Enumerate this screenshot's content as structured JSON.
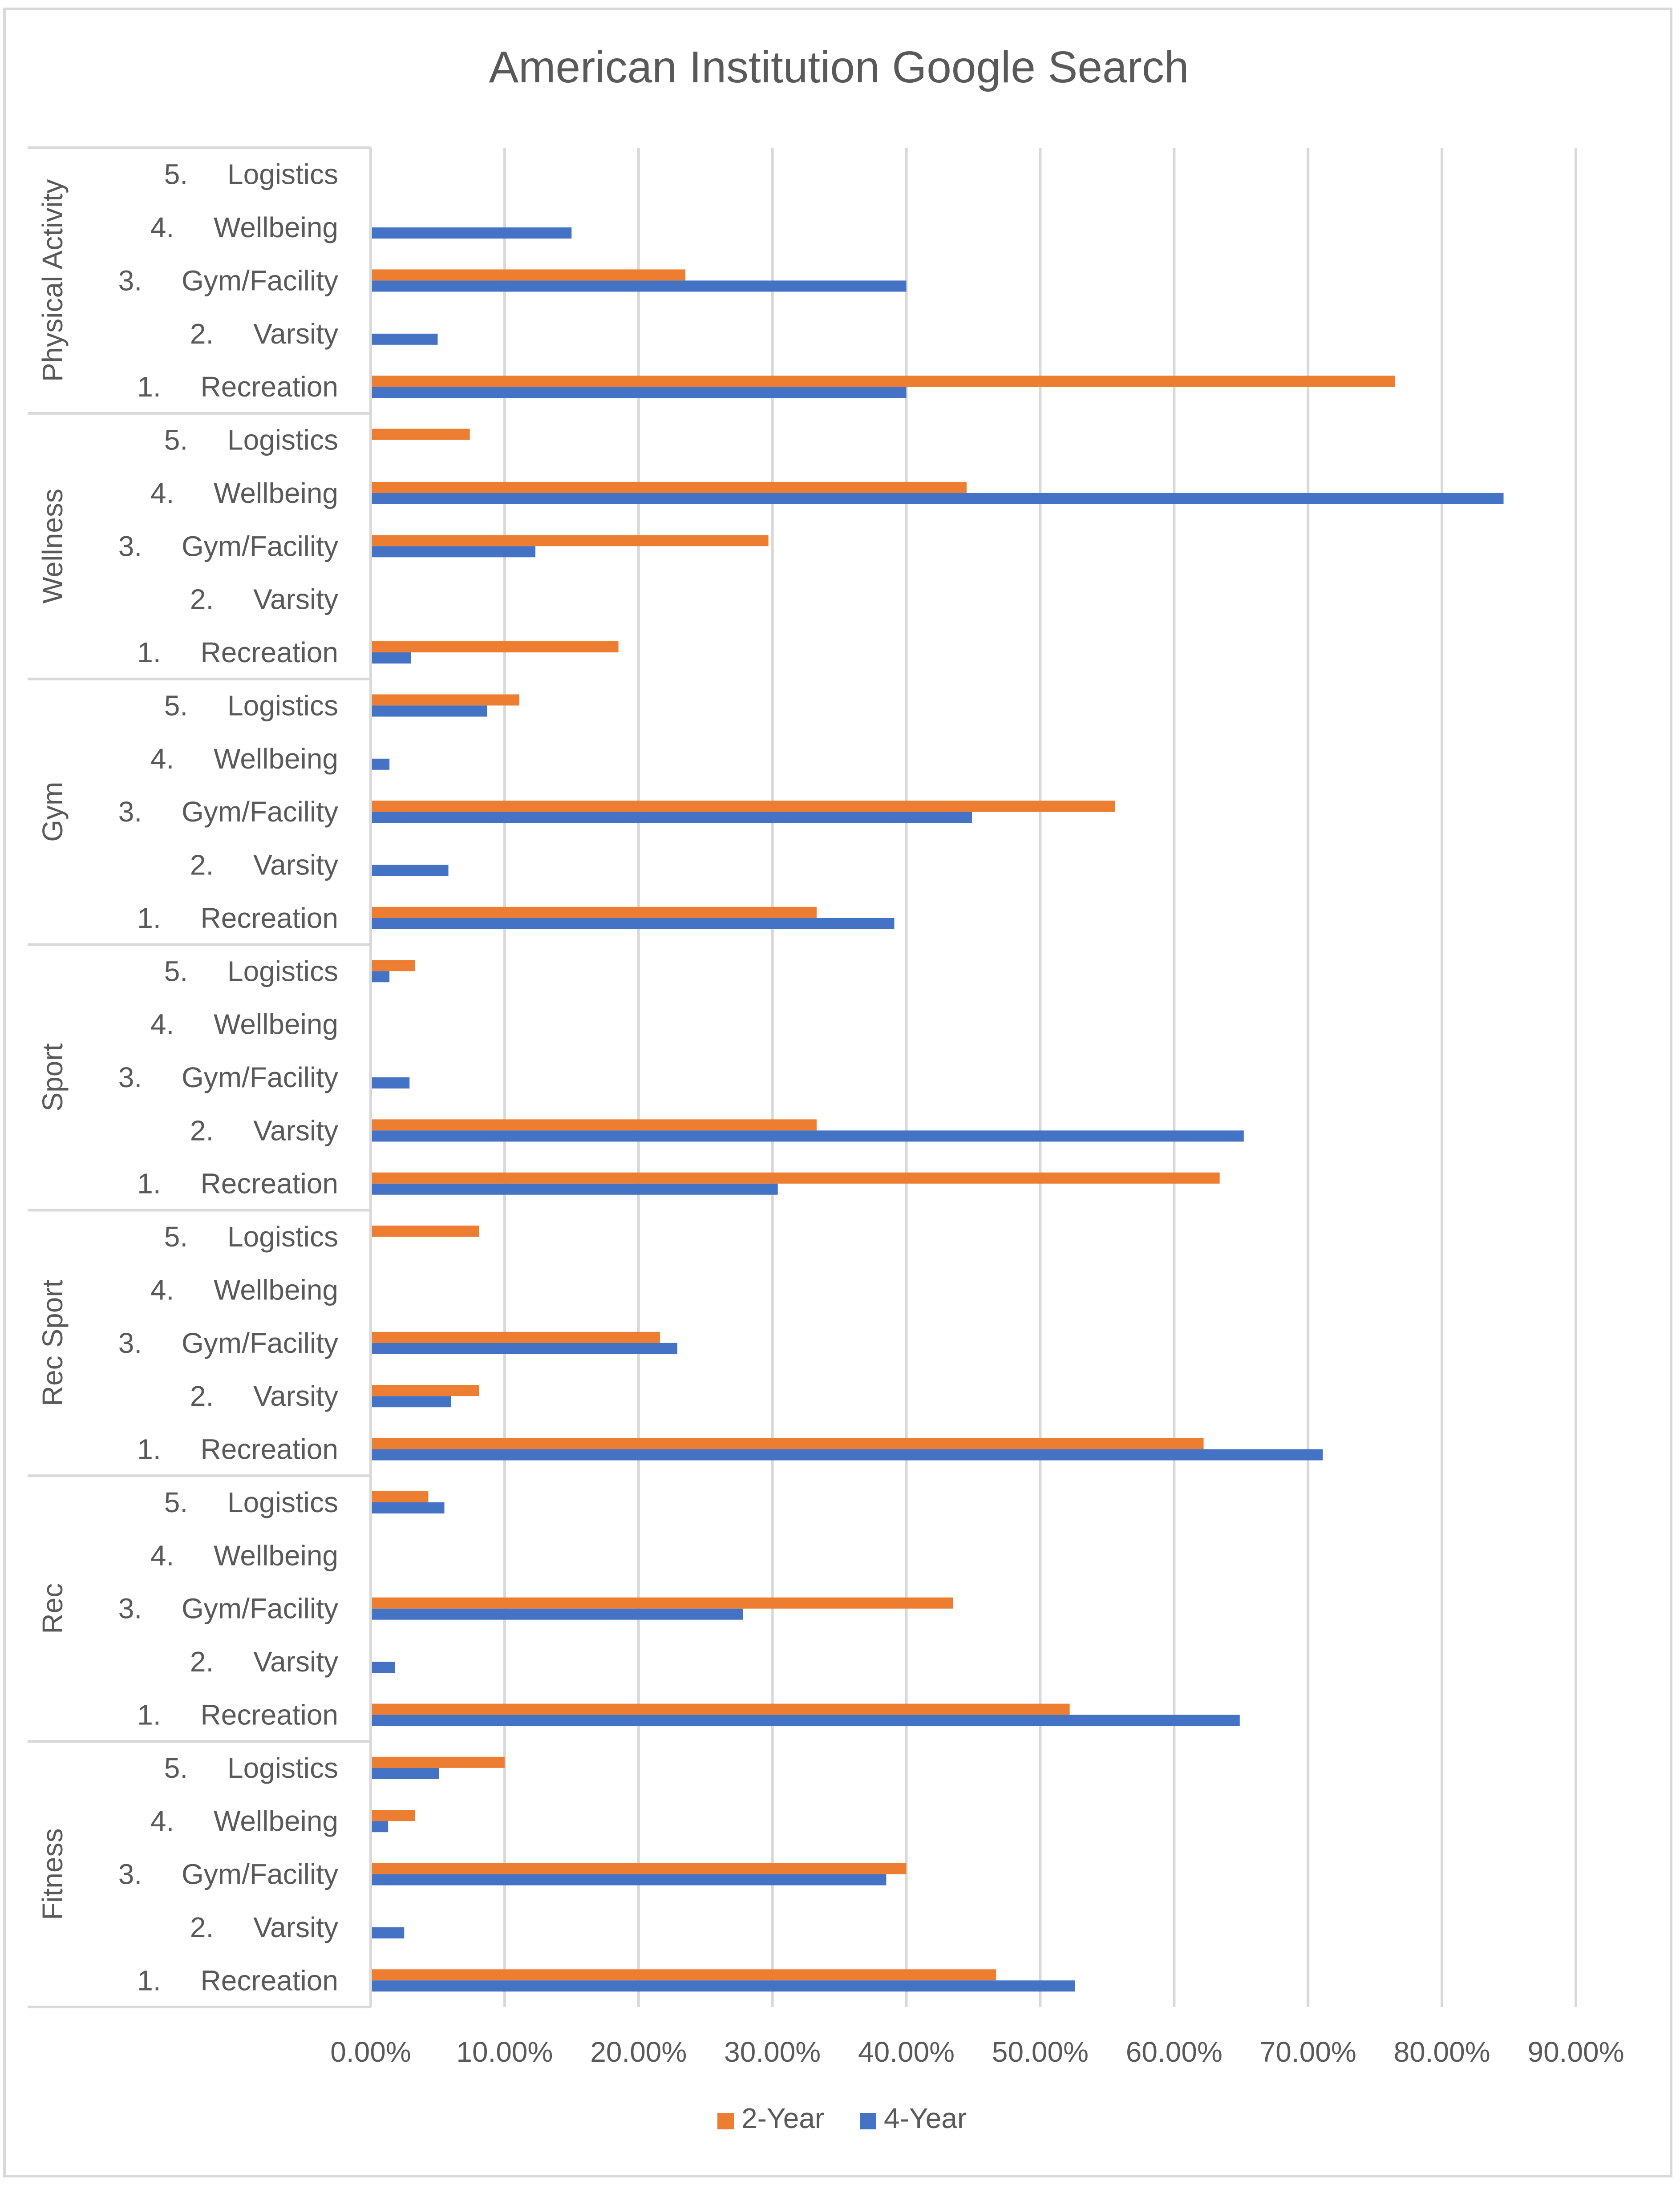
{
  "colors": {
    "two_year": "#ED7D31",
    "four_year": "#4472C4",
    "gridline": "#D9D9D9",
    "axis_line": "#D9D9D9",
    "text": "#595959",
    "border": "#D9D9D9"
  },
  "chart_data": {
    "type": "bar",
    "orientation": "horizontal",
    "title": "American Institution Google Search",
    "xlabel": "",
    "ylabel": "",
    "xlim": [
      0,
      0.9
    ],
    "x_ticks": [
      0,
      0.1,
      0.2,
      0.3,
      0.4,
      0.5,
      0.6,
      0.7,
      0.8,
      0.9
    ],
    "x_tick_labels": [
      "0.00%",
      "10.00%",
      "20.00%",
      "30.00%",
      "40.00%",
      "50.00%",
      "60.00%",
      "70.00%",
      "80.00%",
      "90.00%"
    ],
    "grid": true,
    "legend_position": "bottom",
    "category_labels": [
      "1.     Recreation",
      "2.     Varsity",
      "3.     Gym/Facility",
      "4.     Wellbeing",
      "5.     Logistics"
    ],
    "series_names": [
      "2-Year",
      "4-Year"
    ],
    "groups": [
      {
        "name": "Physical Activity",
        "two_year": [
          0.765,
          0,
          0.235,
          0,
          0
        ],
        "four_year": [
          0.4,
          0.05,
          0.4,
          0.15,
          0
        ]
      },
      {
        "name": "Wellness",
        "two_year": [
          0.185,
          0,
          0.297,
          0.445,
          0.074
        ],
        "four_year": [
          0.03,
          0,
          0.123,
          0.846,
          0
        ]
      },
      {
        "name": "Gym",
        "two_year": [
          0.333,
          0,
          0.556,
          0,
          0.111
        ],
        "four_year": [
          0.391,
          0.058,
          0.449,
          0.014,
          0.087
        ]
      },
      {
        "name": "Sport",
        "two_year": [
          0.634,
          0.333,
          0,
          0,
          0.033
        ],
        "four_year": [
          0.304,
          0.652,
          0.029,
          0,
          0.014
        ]
      },
      {
        "name": "Rec Sport",
        "two_year": [
          0.622,
          0.081,
          0.216,
          0,
          0.081
        ],
        "four_year": [
          0.711,
          0.06,
          0.229,
          0,
          0
        ]
      },
      {
        "name": "Rec",
        "two_year": [
          0.522,
          0,
          0.435,
          0,
          0.043
        ],
        "four_year": [
          0.649,
          0.018,
          0.278,
          0,
          0.055
        ]
      },
      {
        "name": "Fitness",
        "two_year": [
          0.467,
          0,
          0.4,
          0.033,
          0.1
        ],
        "four_year": [
          0.526,
          0.025,
          0.385,
          0.013,
          0.051
        ]
      }
    ]
  }
}
